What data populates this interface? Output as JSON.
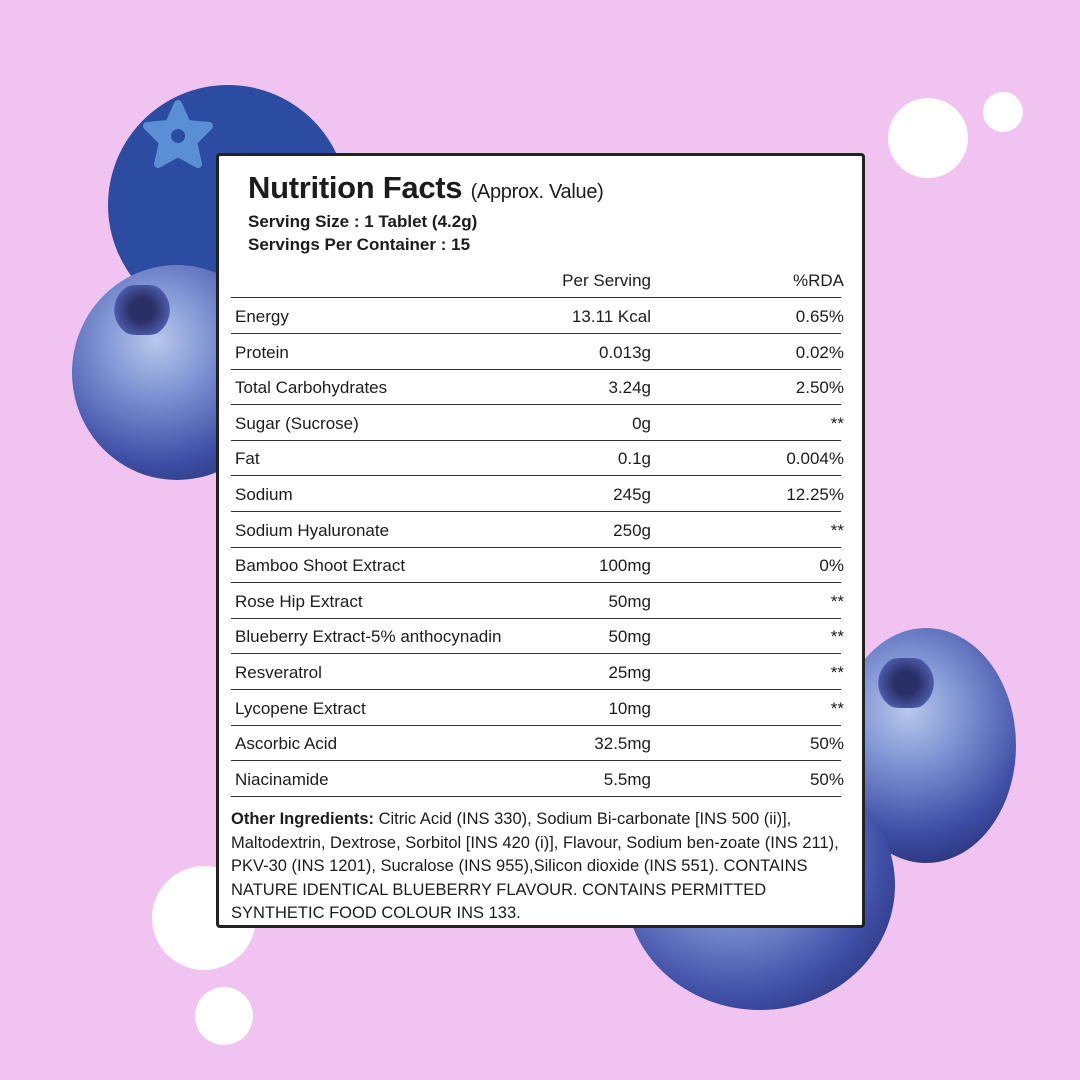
{
  "title": "Nutrition Facts",
  "title_note": "(Approx. Value)",
  "serving_size": "Serving Size : 1 Tablet (4.2g)",
  "servings_per_container": "Servings Per Container : 15",
  "columns": {
    "per_serving": "Per Serving",
    "rda": "%RDA"
  },
  "rows": [
    {
      "name": "Energy",
      "value": "13.11 Kcal",
      "rda": "0.65%"
    },
    {
      "name": "Protein",
      "value": "0.013g",
      "rda": "0.02%"
    },
    {
      "name": "Total Carbohydrates",
      "value": "3.24g",
      "rda": "2.50%"
    },
    {
      "name": "Sugar (Sucrose)",
      "value": "0g",
      "rda": "**"
    },
    {
      "name": "Fat",
      "value": "0.1g",
      "rda": "0.004%"
    },
    {
      "name": "Sodium",
      "value": "245g",
      "rda": "12.25%"
    },
    {
      "name": "Sodium Hyaluronate",
      "value": "250g",
      "rda": "**"
    },
    {
      "name": "Bamboo Shoot Extract",
      "value": "100mg",
      "rda": "0%"
    },
    {
      "name": "Rose Hip Extract",
      "value": "50mg",
      "rda": "**"
    },
    {
      "name": "Blueberry Extract-5% anthocynadin",
      "value": "50mg",
      "rda": "**"
    },
    {
      "name": "Resveratrol",
      "value": "25mg",
      "rda": "**"
    },
    {
      "name": "Lycopene Extract",
      "value": "10mg",
      "rda": "**"
    },
    {
      "name": "Ascorbic Acid",
      "value": "32.5mg",
      "rda": "50%"
    },
    {
      "name": "Niacinamide",
      "value": "5.5mg",
      "rda": "50%"
    }
  ],
  "other_label": "Other Ingredients:",
  "other_text": " Citric Acid (INS 330), Sodium Bi-carbonate [INS 500 (ii)], Maltodextrin, Dextrose, Sorbitol [INS 420 (i)], Flavour, Sodium ben-zoate (INS 211), PKV-30 (INS 1201), Sucralose (INS 955),Silicon dioxide (INS 551).  CONTAINS NATURE IDENTICAL BLUEBERRY FLAVOUR. CONTAINS PERMITTED SYNTHETIC FOOD COLOUR INS 133.",
  "colors": {
    "background": "#f1c3f1",
    "blue_circle": "#2c4ca2",
    "star": "#5a8fd6"
  }
}
